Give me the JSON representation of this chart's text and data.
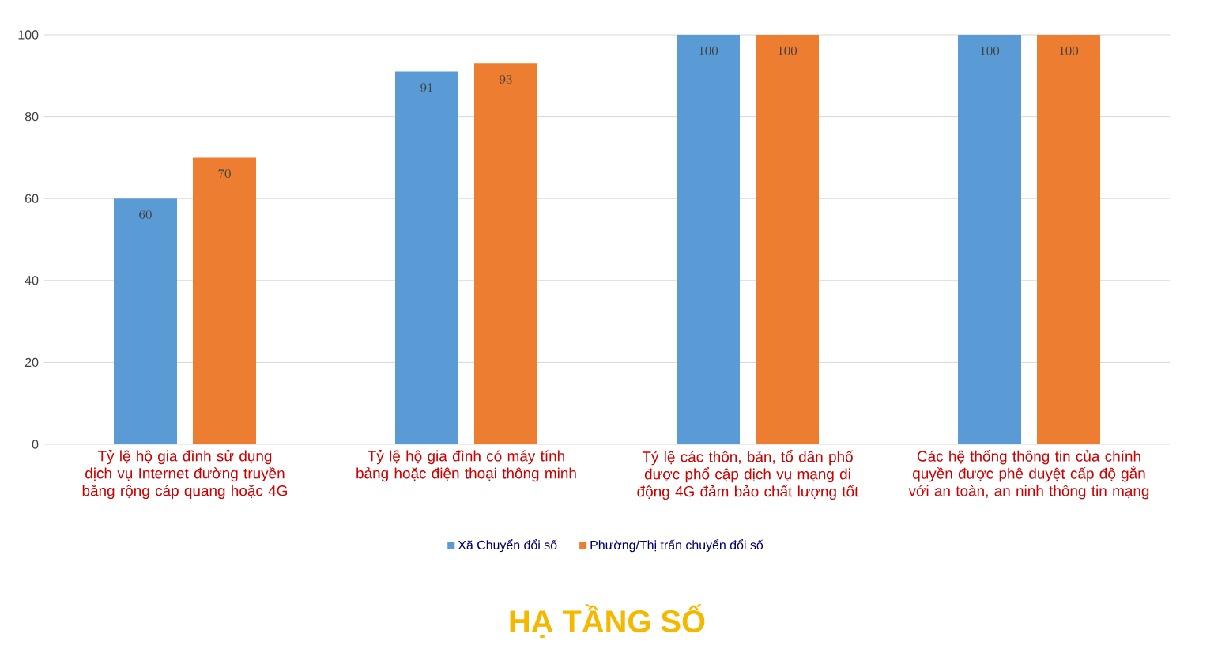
{
  "chart_data": {
    "type": "bar",
    "title": "HẠ TẦNG SỐ",
    "categories": [
      "Tỷ lệ hộ gia đình sử dụng dịch vụ Internet đường truyền băng rộng cáp quang hoặc 4G",
      "Tỷ lệ hộ gia đình có máy tính bảng hoặc điện thoại thông minh",
      "Tỷ lệ các thôn, bản, tổ dân phố được phổ cập dịch vụ mạng di động 4G đảm bảo chất lượng tốt",
      "Các hệ thống thông tin của chính quyền được phê duyệt cấp độ gắn với an toàn, an ninh thông tin mạng"
    ],
    "series": [
      {
        "name": "Xã Chuyển đổi số",
        "color": "#5b9bd5",
        "values": [
          60,
          91,
          100,
          100
        ]
      },
      {
        "name": "Phường/Thị trấn chuyển đổi số",
        "color": "#ed7d31",
        "values": [
          70,
          93,
          100,
          100
        ]
      }
    ],
    "ylim": [
      0,
      100
    ],
    "yticks": [
      0,
      20,
      40,
      60,
      80,
      100
    ],
    "grid": "y",
    "legend": "bottom",
    "data_labels": true
  }
}
